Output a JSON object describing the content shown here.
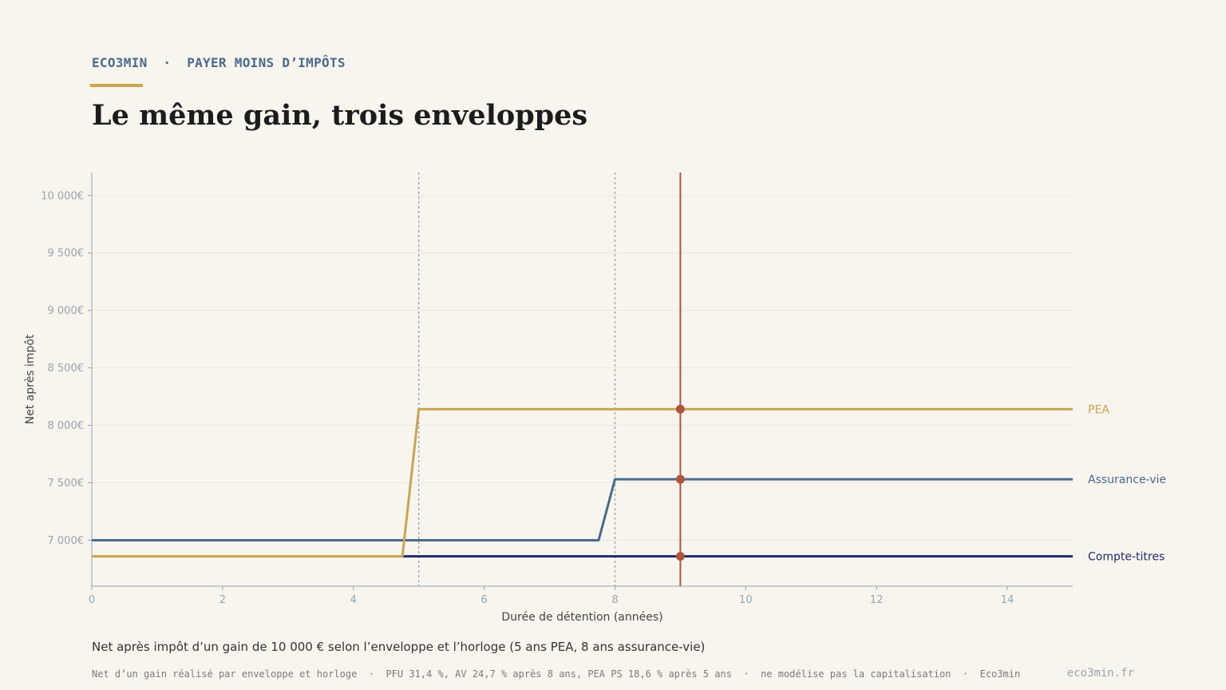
{
  "header": {
    "kicker": "ECO3MIN  ·  PAYER MOINS D’IMPÔTS",
    "title": "Le même gain, trois enveloppes"
  },
  "subtitle": "Net après impôt d’un gain de 10 000 € selon l’enveloppe et l’horloge (5 ans PEA, 8 ans assurance-vie)",
  "footnote": "Net d’un gain réalisé par enveloppe et horloge  ·  PFU 31,4 %, AV 24,7 % après 8 ans, PEA PS 18,6 % après 5 ans  ·  ne modélise pas la capitalisation  ·  Eco3min",
  "site": "eco3min.fr",
  "colors": {
    "background": "#f8f5ef",
    "pea": "#c9a54e",
    "assurance_vie": "#4a6a8c",
    "compte_titres": "#1f2a6e",
    "marker": "#b0553a",
    "axis": "#9aa3ab"
  },
  "chart_data": {
    "type": "line",
    "xlabel": "Durée de détention (années)",
    "ylabel": "Net après impôt",
    "xlim": [
      0,
      15
    ],
    "ylim": [
      6600,
      10200
    ],
    "xticks": [
      0,
      2,
      4,
      6,
      8,
      10,
      12,
      14
    ],
    "yticks": [
      7000,
      7500,
      8000,
      8500,
      9000,
      9500,
      10000
    ],
    "ytick_labels": [
      "7 000€",
      "7 500€",
      "8 000€",
      "8 500€",
      "9 000€",
      "9 500€",
      "10 000€"
    ],
    "vlines_dashed": [
      5,
      8
    ],
    "vline_highlight": 9,
    "grid": "horizontal",
    "legend": "end-of-line labels, right",
    "series": [
      {
        "name": "PEA",
        "color": "#c9a54e",
        "x": [
          0,
          4.75,
          5,
          15
        ],
        "y": [
          6860,
          6860,
          8140,
          8140
        ],
        "marker_at_9": 8140
      },
      {
        "name": "Assurance-vie",
        "color": "#4a6a8c",
        "x": [
          0,
          7.75,
          8,
          15
        ],
        "y": [
          7000,
          7000,
          7530,
          7530
        ],
        "marker_at_9": 7530
      },
      {
        "name": "Compte-titres",
        "color": "#1f2a6e",
        "x": [
          4.75,
          15
        ],
        "y": [
          6860,
          6860
        ],
        "marker_at_9": 6860
      }
    ]
  }
}
